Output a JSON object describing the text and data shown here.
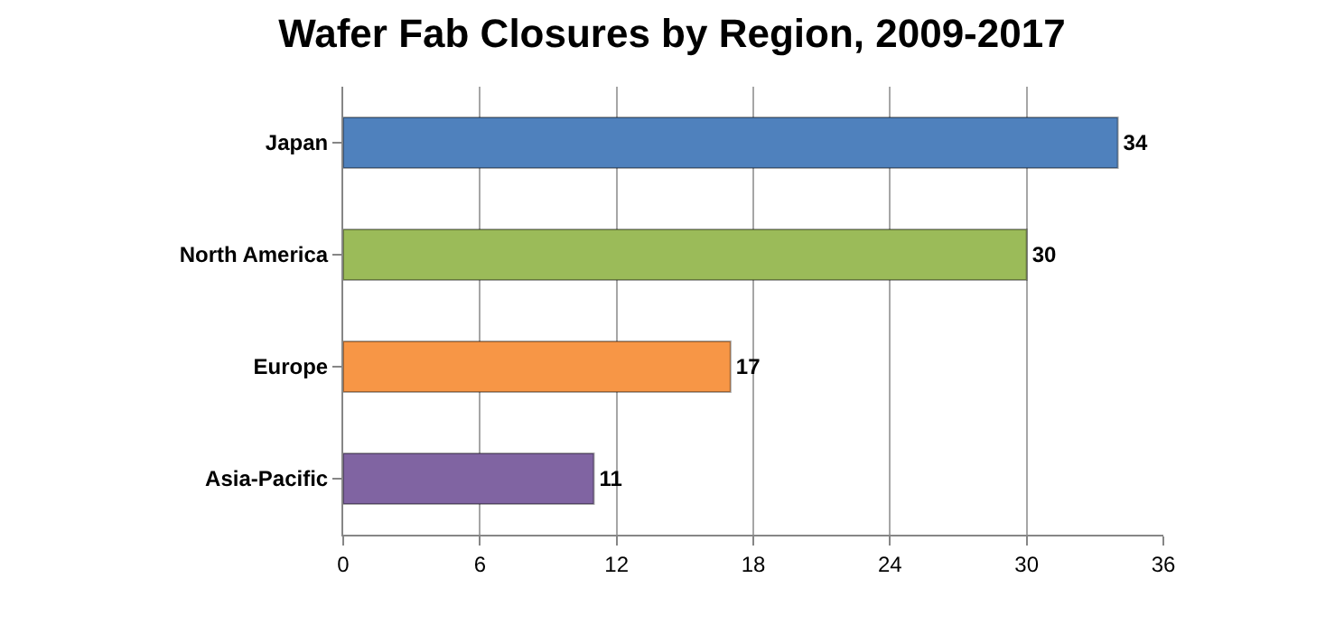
{
  "chart_data": {
    "type": "bar",
    "title": "Wafer Fab Closures by Region, 2009-2017",
    "orientation": "horizontal",
    "categories": [
      "Japan",
      "North America",
      "Europe",
      "Asia-Pacific"
    ],
    "values": [
      34,
      30,
      17,
      11
    ],
    "colors": [
      "#4f81bd",
      "#9bbb59",
      "#f79646",
      "#8064a2"
    ],
    "xlim": [
      0,
      36
    ],
    "xticks": [
      0,
      6,
      12,
      18,
      24,
      30,
      36
    ],
    "grid": "x",
    "data_labels": true
  }
}
